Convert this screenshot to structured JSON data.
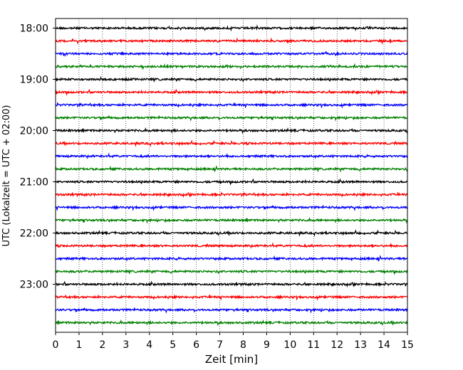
{
  "chart_data": {
    "type": "line",
    "title": "",
    "xlabel": "Zeit  [min]",
    "ylabel": "UTC (Lokalzeit = UTC + 02:00)",
    "xlim": [
      0,
      15
    ],
    "x_ticks": [
      0,
      1,
      2,
      3,
      4,
      5,
      6,
      7,
      8,
      9,
      10,
      11,
      12,
      13,
      14,
      15
    ],
    "y_tick_labels": [
      "18:00",
      "19:00",
      "20:00",
      "21:00",
      "22:00",
      "23:00"
    ],
    "trace_start_times": [
      "18:00",
      "18:15",
      "18:30",
      "18:45",
      "19:00",
      "19:15",
      "19:30",
      "19:45",
      "20:00",
      "20:15",
      "20:30",
      "20:45",
      "21:00",
      "21:15",
      "21:30",
      "21:45",
      "22:00",
      "22:15",
      "22:30",
      "22:45",
      "23:00",
      "23:15",
      "23:30",
      "23:45"
    ],
    "trace_colors": [
      "#000000",
      "#ff0000",
      "#0000ff",
      "#008000"
    ],
    "trace_duration_min": 15,
    "grid": "vertical dotted lines at each minute"
  }
}
